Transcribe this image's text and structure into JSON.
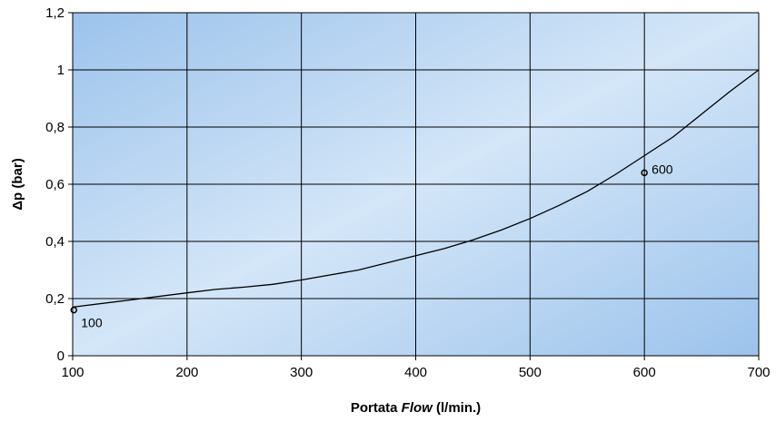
{
  "chart_data": {
    "type": "line",
    "title": "",
    "xlabel_parts": [
      "Portata ",
      "Flow",
      " (l/min.)"
    ],
    "ylabel": "Δp (bar)",
    "xlim": [
      100,
      700
    ],
    "ylim": [
      0,
      1.2
    ],
    "x_ticks": [
      100,
      200,
      300,
      400,
      500,
      600,
      700
    ],
    "x_tick_labels": [
      "100",
      "200",
      "300",
      "400",
      "500",
      "600",
      "700"
    ],
    "y_ticks": [
      0,
      0.2,
      0.4,
      0.6,
      0.8,
      1.0,
      1.2
    ],
    "y_tick_labels": [
      "0",
      "0,2",
      "0,4",
      "0,6",
      "0,8",
      "1",
      "1,2"
    ],
    "grid": true,
    "series": [
      {
        "x": [
          100,
          150,
          200,
          225,
          250,
          275,
          300,
          350,
          400,
          425,
          450,
          475,
          500,
          525,
          550,
          575,
          600,
          625,
          650,
          675,
          700
        ],
        "y": [
          0.17,
          0.195,
          0.22,
          0.232,
          0.24,
          0.25,
          0.265,
          0.3,
          0.35,
          0.375,
          0.405,
          0.44,
          0.48,
          0.525,
          0.575,
          0.635,
          0.7,
          0.765,
          0.845,
          0.925,
          1.0
        ]
      }
    ],
    "points": [
      {
        "x": 101,
        "y": 0.16,
        "label": "100"
      },
      {
        "x": 600,
        "y": 0.64,
        "label": "600"
      }
    ],
    "colors": {
      "plot_bg_dark": "#9cc3ec",
      "plot_bg_light": "#d4e6f8",
      "grid": "#000000",
      "line": "#000000"
    }
  }
}
